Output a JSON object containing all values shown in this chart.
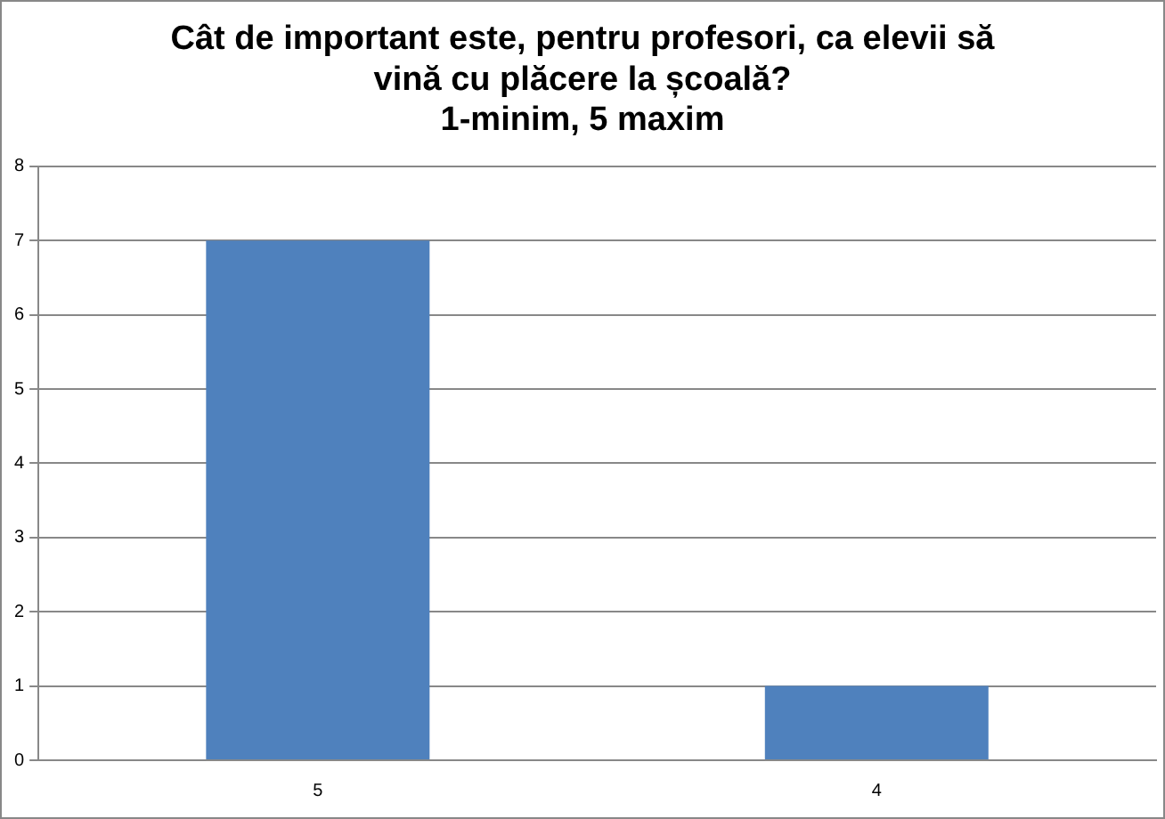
{
  "chart_data": {
    "type": "bar",
    "title": "Cât de important este, pentru profesori, ca elevii să\nvină cu plăcere la școală?\n1-minim, 5 maxim",
    "categories": [
      "5",
      "4"
    ],
    "values": [
      7,
      1
    ],
    "color": "#4f81bd",
    "ylim": [
      0,
      8
    ],
    "yticks": [
      0,
      1,
      2,
      3,
      4,
      5,
      6,
      7,
      8
    ],
    "grid": "y",
    "legend": false
  }
}
